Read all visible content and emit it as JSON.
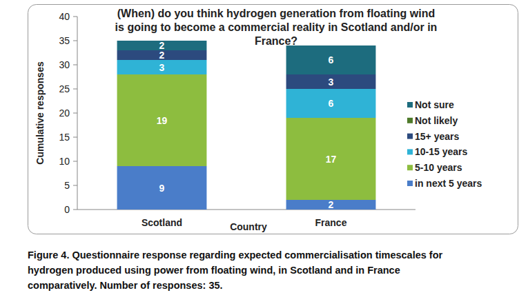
{
  "chart_data": {
    "type": "bar",
    "stacked": true,
    "title": [
      "(When) do you think hydrogen generation from floating wind",
      "is going to become a commercial reality in Scotland and/or in",
      "France?"
    ],
    "caption": [
      "Figure 4. Questionnaire response regarding expected commercialisation timescales for",
      "hydrogen produced using power from floating wind, in Scotland and in France",
      "comparatively. Number of responses: 35."
    ],
    "x_label": "Country",
    "y_label": "Cumulative responses",
    "categories": [
      "Scotland",
      "France"
    ],
    "series": [
      {
        "name": "in next 5 years",
        "color": "#4a7dc9",
        "values": [
          9,
          2
        ]
      },
      {
        "name": "5-10 years",
        "color": "#8dbd3f",
        "values": [
          19,
          17
        ]
      },
      {
        "name": "10-15 years",
        "color": "#2fb3d6",
        "values": [
          3,
          6
        ]
      },
      {
        "name": "15+ years",
        "color": "#2c4a7e",
        "values": [
          2,
          3
        ]
      },
      {
        "name": "Not likely",
        "color": "#4e7a2a",
        "values": [
          0,
          0
        ]
      },
      {
        "name": "Not sure",
        "color": "#1d6c7e",
        "values": [
          2,
          6
        ]
      }
    ],
    "ylim": [
      0,
      40
    ],
    "yticks": [
      0,
      5,
      10,
      15,
      20,
      25,
      30,
      35,
      40
    ],
    "grid": false,
    "legend": "right",
    "data_labels": true
  }
}
